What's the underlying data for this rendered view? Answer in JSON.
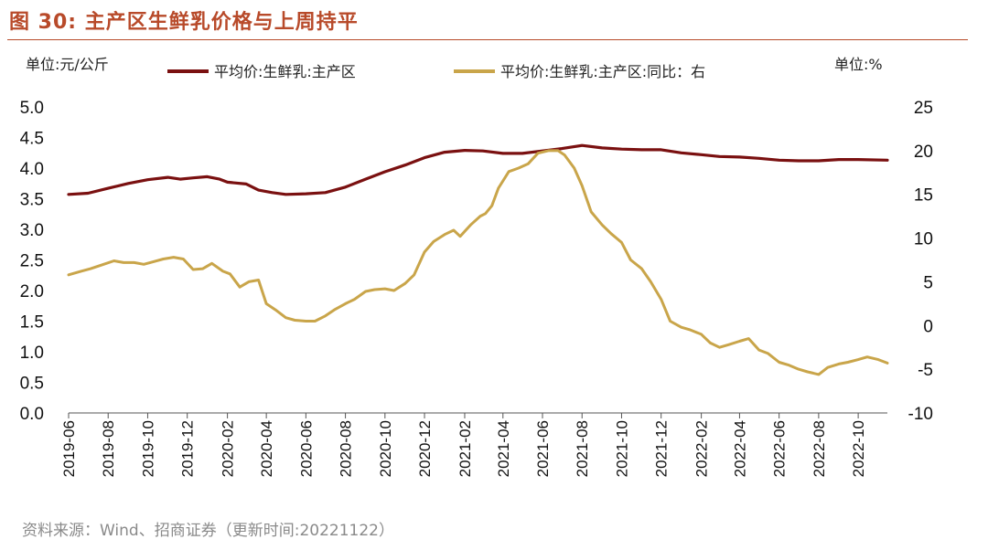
{
  "figure": {
    "title": "图 30: 主产区生鲜乳价格与上周持平",
    "source": "资料来源：Wind、招商证券（更新时间:20221122）"
  },
  "colors": {
    "title": "#b84a2a",
    "price_series": "#7a1010",
    "yoy_series": "#c9a54a",
    "axis": "#555555",
    "negative_tick": "#e00000"
  },
  "chart_data": {
    "type": "line",
    "left_unit": "单位:元/公斤",
    "right_unit": "单位:%",
    "y_left_lim": [
      0,
      5
    ],
    "y_left_ticks": [
      "0.0",
      "0.5",
      "1.0",
      "1.5",
      "2.0",
      "2.5",
      "3.0",
      "3.5",
      "4.0",
      "4.5",
      "5.0"
    ],
    "y_right_lim": [
      -10,
      25
    ],
    "y_right_ticks": [
      "-10",
      "-5",
      "0",
      "5",
      "10",
      "15",
      "20",
      "25"
    ],
    "x_range": [
      "2019-06-01",
      "2022-11-15"
    ],
    "x_ticks": [
      "2019-06",
      "2019-08",
      "2019-10",
      "2019-12",
      "2020-02",
      "2020-04",
      "2020-06",
      "2020-08",
      "2020-10",
      "2020-12",
      "2021-02",
      "2021-04",
      "2021-06",
      "2021-08",
      "2021-10",
      "2021-12",
      "2022-02",
      "2022-04",
      "2022-06",
      "2022-08",
      "2022-10"
    ],
    "grid": false,
    "legend_placement": "top",
    "series": [
      {
        "name": "平均价:生鲜乳:主产区",
        "axis": "left",
        "points": [
          [
            "2019-06-01",
            3.57
          ],
          [
            "2019-07-01",
            3.59
          ],
          [
            "2019-08-01",
            3.67
          ],
          [
            "2019-09-01",
            3.75
          ],
          [
            "2019-10-01",
            3.81
          ],
          [
            "2019-11-01",
            3.85
          ],
          [
            "2019-11-20",
            3.82
          ],
          [
            "2019-12-10",
            3.84
          ],
          [
            "2020-01-01",
            3.86
          ],
          [
            "2020-01-20",
            3.82
          ],
          [
            "2020-02-01",
            3.77
          ],
          [
            "2020-03-01",
            3.74
          ],
          [
            "2020-03-20",
            3.64
          ],
          [
            "2020-04-10",
            3.6
          ],
          [
            "2020-05-01",
            3.57
          ],
          [
            "2020-06-01",
            3.58
          ],
          [
            "2020-07-01",
            3.6
          ],
          [
            "2020-08-01",
            3.69
          ],
          [
            "2020-09-01",
            3.82
          ],
          [
            "2020-10-01",
            3.94
          ],
          [
            "2020-11-01",
            4.05
          ],
          [
            "2020-12-01",
            4.17
          ],
          [
            "2021-01-01",
            4.26
          ],
          [
            "2021-02-01",
            4.29
          ],
          [
            "2021-03-01",
            4.28
          ],
          [
            "2021-04-01",
            4.24
          ],
          [
            "2021-05-01",
            4.24
          ],
          [
            "2021-06-01",
            4.28
          ],
          [
            "2021-07-01",
            4.32
          ],
          [
            "2021-08-01",
            4.37
          ],
          [
            "2021-09-01",
            4.33
          ],
          [
            "2021-10-01",
            4.31
          ],
          [
            "2021-11-01",
            4.3
          ],
          [
            "2021-12-01",
            4.3
          ],
          [
            "2022-01-01",
            4.25
          ],
          [
            "2022-02-01",
            4.22
          ],
          [
            "2022-03-01",
            4.19
          ],
          [
            "2022-04-01",
            4.18
          ],
          [
            "2022-05-01",
            4.16
          ],
          [
            "2022-06-01",
            4.13
          ],
          [
            "2022-07-01",
            4.12
          ],
          [
            "2022-08-01",
            4.12
          ],
          [
            "2022-09-01",
            4.14
          ],
          [
            "2022-10-01",
            4.14
          ],
          [
            "2022-11-15",
            4.13
          ]
        ]
      },
      {
        "name": "平均价:生鲜乳:主产区:同比：右",
        "axis": "right",
        "points": [
          [
            "2019-06-01",
            5.8
          ],
          [
            "2019-06-20",
            6.2
          ],
          [
            "2019-07-05",
            6.5
          ],
          [
            "2019-07-25",
            7.0
          ],
          [
            "2019-08-10",
            7.4
          ],
          [
            "2019-08-25",
            7.2
          ],
          [
            "2019-09-10",
            7.2
          ],
          [
            "2019-09-25",
            7.0
          ],
          [
            "2019-10-10",
            7.3
          ],
          [
            "2019-10-25",
            7.6
          ],
          [
            "2019-11-10",
            7.8
          ],
          [
            "2019-11-25",
            7.6
          ],
          [
            "2019-12-10",
            6.4
          ],
          [
            "2019-12-25",
            6.5
          ],
          [
            "2020-01-08",
            7.1
          ],
          [
            "2020-01-25",
            6.2
          ],
          [
            "2020-02-05",
            5.9
          ],
          [
            "2020-02-20",
            4.4
          ],
          [
            "2020-03-05",
            5.0
          ],
          [
            "2020-03-20",
            5.2
          ],
          [
            "2020-04-01",
            2.5
          ],
          [
            "2020-04-15",
            1.8
          ],
          [
            "2020-05-01",
            0.9
          ],
          [
            "2020-05-15",
            0.6
          ],
          [
            "2020-06-01",
            0.5
          ],
          [
            "2020-06-15",
            0.5
          ],
          [
            "2020-07-01",
            1.1
          ],
          [
            "2020-07-15",
            1.8
          ],
          [
            "2020-08-01",
            2.5
          ],
          [
            "2020-08-15",
            3.0
          ],
          [
            "2020-09-01",
            3.9
          ],
          [
            "2020-09-15",
            4.1
          ],
          [
            "2020-10-01",
            4.2
          ],
          [
            "2020-10-15",
            4.0
          ],
          [
            "2020-11-01",
            4.8
          ],
          [
            "2020-11-15",
            5.8
          ],
          [
            "2020-12-01",
            8.4
          ],
          [
            "2020-12-15",
            9.6
          ],
          [
            "2021-01-01",
            10.4
          ],
          [
            "2021-01-15",
            10.9
          ],
          [
            "2021-01-25",
            10.2
          ],
          [
            "2021-02-10",
            11.5
          ],
          [
            "2021-02-25",
            12.5
          ],
          [
            "2021-03-05",
            12.8
          ],
          [
            "2021-03-15",
            13.7
          ],
          [
            "2021-03-25",
            15.7
          ],
          [
            "2021-04-10",
            17.6
          ],
          [
            "2021-04-25",
            18.0
          ],
          [
            "2021-05-10",
            18.5
          ],
          [
            "2021-05-25",
            19.7
          ],
          [
            "2021-06-10",
            20.0
          ],
          [
            "2021-06-25",
            20.0
          ],
          [
            "2021-07-05",
            19.5
          ],
          [
            "2021-07-20",
            18.0
          ],
          [
            "2021-08-01",
            16.0
          ],
          [
            "2021-08-15",
            13.0
          ],
          [
            "2021-09-01",
            11.5
          ],
          [
            "2021-09-15",
            10.5
          ],
          [
            "2021-10-01",
            9.5
          ],
          [
            "2021-10-15",
            7.5
          ],
          [
            "2021-11-01",
            6.5
          ],
          [
            "2021-11-15",
            5.0
          ],
          [
            "2021-12-01",
            3.0
          ],
          [
            "2021-12-15",
            0.5
          ],
          [
            "2022-01-01",
            -0.2
          ],
          [
            "2022-01-15",
            -0.5
          ],
          [
            "2022-02-01",
            -1.0
          ],
          [
            "2022-02-15",
            -2.0
          ],
          [
            "2022-03-01",
            -2.5
          ],
          [
            "2022-03-15",
            -2.2
          ],
          [
            "2022-04-01",
            -1.8
          ],
          [
            "2022-04-15",
            -1.5
          ],
          [
            "2022-05-01",
            -2.8
          ],
          [
            "2022-05-15",
            -3.2
          ],
          [
            "2022-06-01",
            -4.2
          ],
          [
            "2022-06-15",
            -4.5
          ],
          [
            "2022-07-01",
            -5.0
          ],
          [
            "2022-07-15",
            -5.3
          ],
          [
            "2022-08-01",
            -5.6
          ],
          [
            "2022-08-15",
            -4.8
          ],
          [
            "2022-09-01",
            -4.4
          ],
          [
            "2022-09-15",
            -4.2
          ],
          [
            "2022-10-01",
            -3.9
          ],
          [
            "2022-10-15",
            -3.6
          ],
          [
            "2022-11-01",
            -3.9
          ],
          [
            "2022-11-15",
            -4.3
          ]
        ]
      }
    ]
  }
}
